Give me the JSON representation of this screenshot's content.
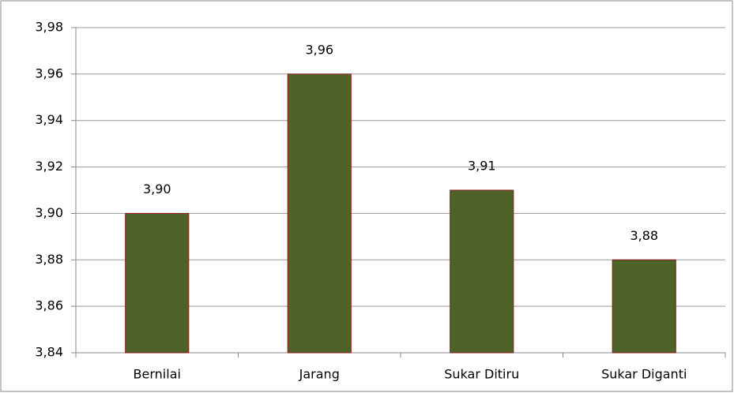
{
  "chart_data": {
    "type": "bar",
    "categories": [
      "Bernilai",
      "Jarang",
      "Sukar Ditiru",
      "Sukar Diganti"
    ],
    "values": [
      3.9,
      3.96,
      3.91,
      3.88
    ],
    "value_labels": [
      "3,90",
      "3,96",
      "3,91",
      "3,88"
    ],
    "color": "#4f6228",
    "edge_color": "#8b1a1a",
    "ylim": [
      3.84,
      3.98
    ],
    "yticks": [
      {
        "value": 3.84,
        "label": "3,84"
      },
      {
        "value": 3.86,
        "label": "3,86"
      },
      {
        "value": 3.88,
        "label": "3,88"
      },
      {
        "value": 3.9,
        "label": "3,90"
      },
      {
        "value": 3.92,
        "label": "3,92"
      },
      {
        "value": 3.94,
        "label": "3,94"
      },
      {
        "value": 3.96,
        "label": "3,96"
      },
      {
        "value": 3.98,
        "label": "3,98"
      }
    ],
    "grid": true
  }
}
